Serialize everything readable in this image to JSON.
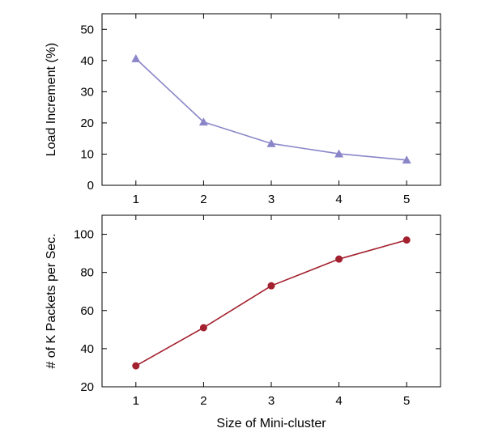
{
  "chart_data": [
    {
      "type": "line",
      "ylabel": "Load Increment (%)",
      "xlabel": "",
      "x": [
        1,
        2,
        3,
        4,
        5
      ],
      "xlim": [
        0.5,
        5.5
      ],
      "ylim": [
        0,
        55
      ],
      "xticks": [
        1,
        2,
        3,
        4,
        5
      ],
      "yticks": [
        0,
        10,
        20,
        30,
        40,
        50
      ],
      "grid": false,
      "series": [
        {
          "values": [
            40.6,
            20.3,
            13.4,
            10.1,
            8.1
          ],
          "color": "#8a86c8",
          "marker": "triangle"
        }
      ]
    },
    {
      "type": "line",
      "ylabel": "# of K Packets per Sec.",
      "xlabel": "Size of Mini-cluster",
      "x": [
        1,
        2,
        3,
        4,
        5
      ],
      "xlim": [
        0.5,
        5.5
      ],
      "ylim": [
        20,
        110
      ],
      "xticks": [
        1,
        2,
        3,
        4,
        5
      ],
      "yticks": [
        20,
        40,
        60,
        80,
        100
      ],
      "grid": false,
      "series": [
        {
          "values": [
            31,
            51,
            73,
            87,
            97
          ],
          "color": "#a3202e",
          "marker": "circle"
        }
      ]
    }
  ]
}
